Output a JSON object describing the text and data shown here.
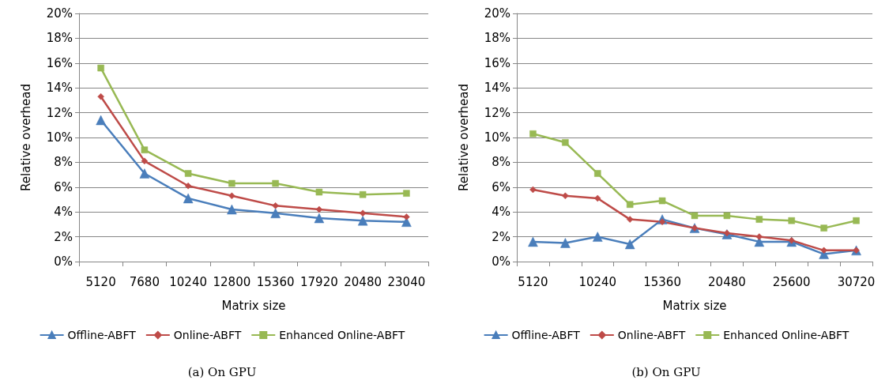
{
  "chart_data": [
    {
      "type": "line",
      "title": "(a) On GPU",
      "xlabel": "Matrix size",
      "ylabel": "Relative overhead",
      "categories": [
        "5120",
        "7680",
        "10240",
        "12800",
        "15360",
        "17920",
        "20480",
        "23040"
      ],
      "series": [
        {
          "name": "Offline-ABFT",
          "color": "#4a7ebb",
          "marker": "triangle",
          "values": [
            11.4,
            7.1,
            5.1,
            4.2,
            3.9,
            3.5,
            3.3,
            3.2
          ]
        },
        {
          "name": "Online-ABFT",
          "color": "#be4b48",
          "marker": "diamond",
          "values": [
            13.3,
            8.1,
            6.1,
            5.3,
            4.5,
            4.2,
            3.9,
            3.6
          ]
        },
        {
          "name": "Enhanced Online-ABFT",
          "color": "#98b954",
          "marker": "square",
          "values": [
            15.6,
            9.0,
            7.1,
            6.3,
            6.3,
            5.6,
            5.4,
            5.5
          ]
        }
      ],
      "ylim": [
        0,
        20
      ],
      "yticks": [
        {
          "value": 0,
          "label": "0%"
        },
        {
          "value": 2,
          "label": "2%"
        },
        {
          "value": 4,
          "label": "4%"
        },
        {
          "value": 6,
          "label": "6%"
        },
        {
          "value": 8,
          "label": "8%"
        },
        {
          "value": 10,
          "label": "10%"
        },
        {
          "value": 12,
          "label": "12%"
        },
        {
          "value": 14,
          "label": "14%"
        },
        {
          "value": 16,
          "label": "16%"
        },
        {
          "value": 18,
          "label": "18%"
        },
        {
          "value": 20,
          "label": "20%"
        }
      ],
      "grid": "y",
      "legend": "bottom"
    },
    {
      "type": "line",
      "title": "(b) On GPU",
      "xlabel": "Matrix size",
      "ylabel": "Relative overhead",
      "categories": [
        "5120",
        null,
        "10240",
        null,
        "15360",
        null,
        "20480",
        null,
        "25600",
        null,
        "30720"
      ],
      "series": [
        {
          "name": "Offline-ABFT",
          "color": "#4a7ebb",
          "marker": "triangle",
          "values": [
            1.6,
            1.5,
            2.0,
            1.4,
            3.4,
            2.7,
            2.2,
            1.6,
            1.6,
            0.6,
            0.9
          ]
        },
        {
          "name": "Online-ABFT",
          "color": "#be4b48",
          "marker": "diamond",
          "values": [
            5.8,
            5.3,
            5.1,
            3.4,
            3.2,
            2.7,
            2.3,
            2.0,
            1.7,
            0.9,
            0.9
          ]
        },
        {
          "name": "Enhanced Online-ABFT",
          "color": "#98b954",
          "marker": "square",
          "values": [
            10.3,
            9.6,
            7.1,
            4.6,
            4.9,
            3.7,
            3.7,
            3.4,
            3.3,
            2.7,
            3.3
          ]
        }
      ],
      "ylim": [
        0,
        20
      ],
      "yticks": [
        {
          "value": 0,
          "label": "0%"
        },
        {
          "value": 2,
          "label": "2%"
        },
        {
          "value": 4,
          "label": "4%"
        },
        {
          "value": 6,
          "label": "6%"
        },
        {
          "value": 8,
          "label": "8%"
        },
        {
          "value": 10,
          "label": "10%"
        },
        {
          "value": 12,
          "label": "12%"
        },
        {
          "value": 14,
          "label": "14%"
        },
        {
          "value": 16,
          "label": "16%"
        },
        {
          "value": 18,
          "label": "18%"
        },
        {
          "value": 20,
          "label": "20%"
        }
      ],
      "grid": "y",
      "legend": "bottom"
    }
  ]
}
